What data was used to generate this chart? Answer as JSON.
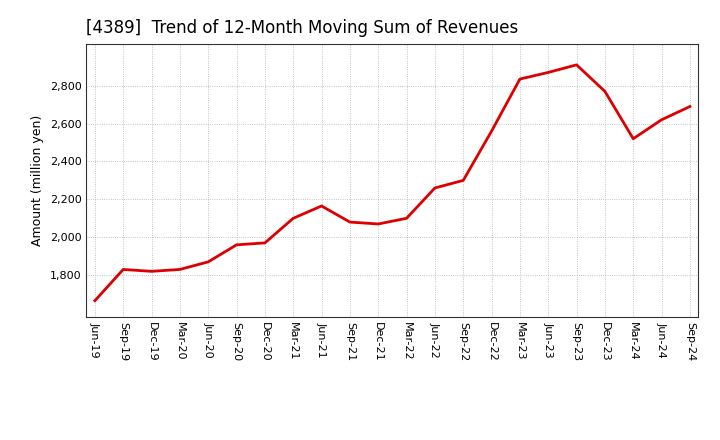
{
  "title": "[4389]  Trend of 12-Month Moving Sum of Revenues",
  "ylabel": "Amount (million yen)",
  "line_color": "#dd0000",
  "fill_color": "#f5a0a0",
  "background_color": "#ffffff",
  "grid_color": "#aaaaaa",
  "ylim": [
    1580,
    3020
  ],
  "yticks": [
    1800,
    2000,
    2200,
    2400,
    2600,
    2800
  ],
  "labels": [
    "Jun-19",
    "Sep-19",
    "Dec-19",
    "Mar-20",
    "Jun-20",
    "Sep-20",
    "Dec-20",
    "Mar-21",
    "Jun-21",
    "Sep-21",
    "Dec-21",
    "Mar-22",
    "Jun-22",
    "Sep-22",
    "Dec-22",
    "Mar-23",
    "Jun-23",
    "Sep-23",
    "Dec-23",
    "Mar-24",
    "Jun-24",
    "Sep-24"
  ],
  "values": [
    1665,
    1830,
    1820,
    1830,
    1870,
    1960,
    1970,
    2100,
    2165,
    2080,
    2070,
    2100,
    2260,
    2300,
    2560,
    2835,
    2870,
    2910,
    2770,
    2520,
    2620,
    2690
  ],
  "title_fontsize": 12,
  "tick_fontsize": 8,
  "ylabel_fontsize": 9
}
